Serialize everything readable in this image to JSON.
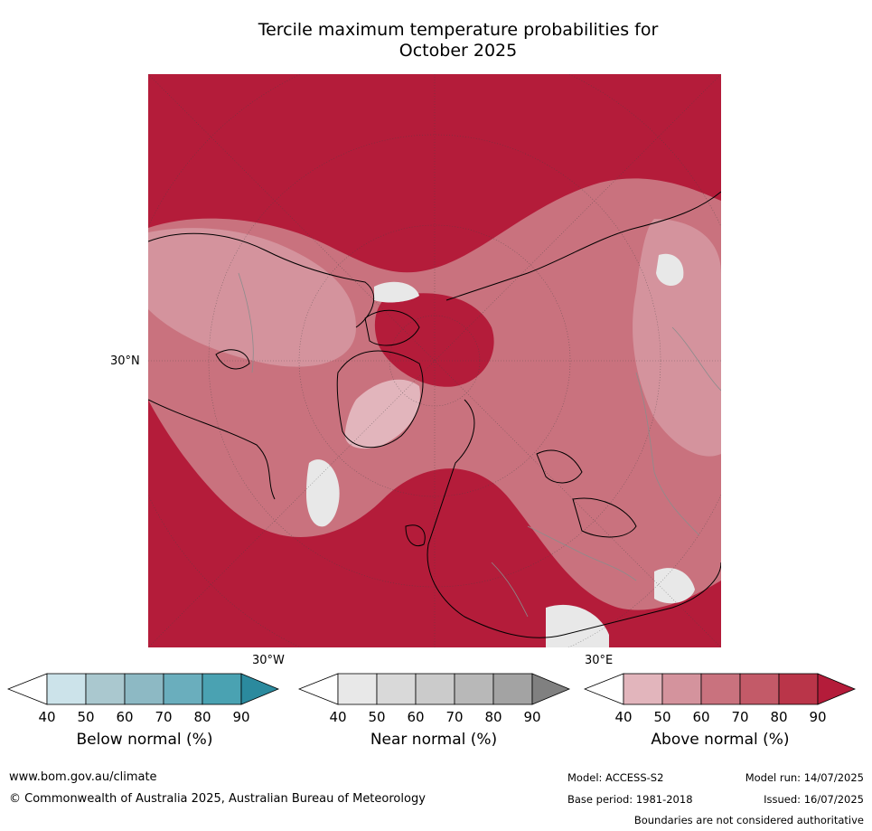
{
  "title_line1": "Tercile maximum temperature probabilities for",
  "title_line2": "October 2025",
  "map": {
    "lat_label": "30°N",
    "lon_label_left": "30°W",
    "lon_label_right": "30°E",
    "dominant_color": "#b41c3a"
  },
  "colorbars": [
    {
      "label": "Below normal (%)",
      "ticks": [
        "40",
        "50",
        "60",
        "70",
        "80",
        "90"
      ],
      "colors": [
        "#ffffff",
        "#cce3ea",
        "#aac8cf",
        "#8db9c4",
        "#6aaebd",
        "#4aa2b2",
        "#2b8a9e"
      ]
    },
    {
      "label": "Near normal (%)",
      "ticks": [
        "40",
        "50",
        "60",
        "70",
        "80",
        "90"
      ],
      "colors": [
        "#ffffff",
        "#e8e8e8",
        "#d9d9d9",
        "#cbcbcb",
        "#b8b8b8",
        "#a3a3a3",
        "#808080"
      ]
    },
    {
      "label": "Above normal (%)",
      "ticks": [
        "40",
        "50",
        "60",
        "70",
        "80",
        "90"
      ],
      "colors": [
        "#ffffff",
        "#e2b5bc",
        "#d4939d",
        "#c9727e",
        "#c35a68",
        "#ba3549",
        "#b41c3a"
      ]
    }
  ],
  "footer": {
    "website": "www.bom.gov.au/climate",
    "copyright": "© Commonwealth of Australia 2025, Australian Bureau of Meteorology",
    "model": "Model: ACCESS-S2",
    "model_run": "Model run: 14/07/2025",
    "base_period": "Base period: 1981-2018",
    "issued": "Issued: 16/07/2025",
    "disclaimer": "Boundaries are not considered authoritative"
  }
}
